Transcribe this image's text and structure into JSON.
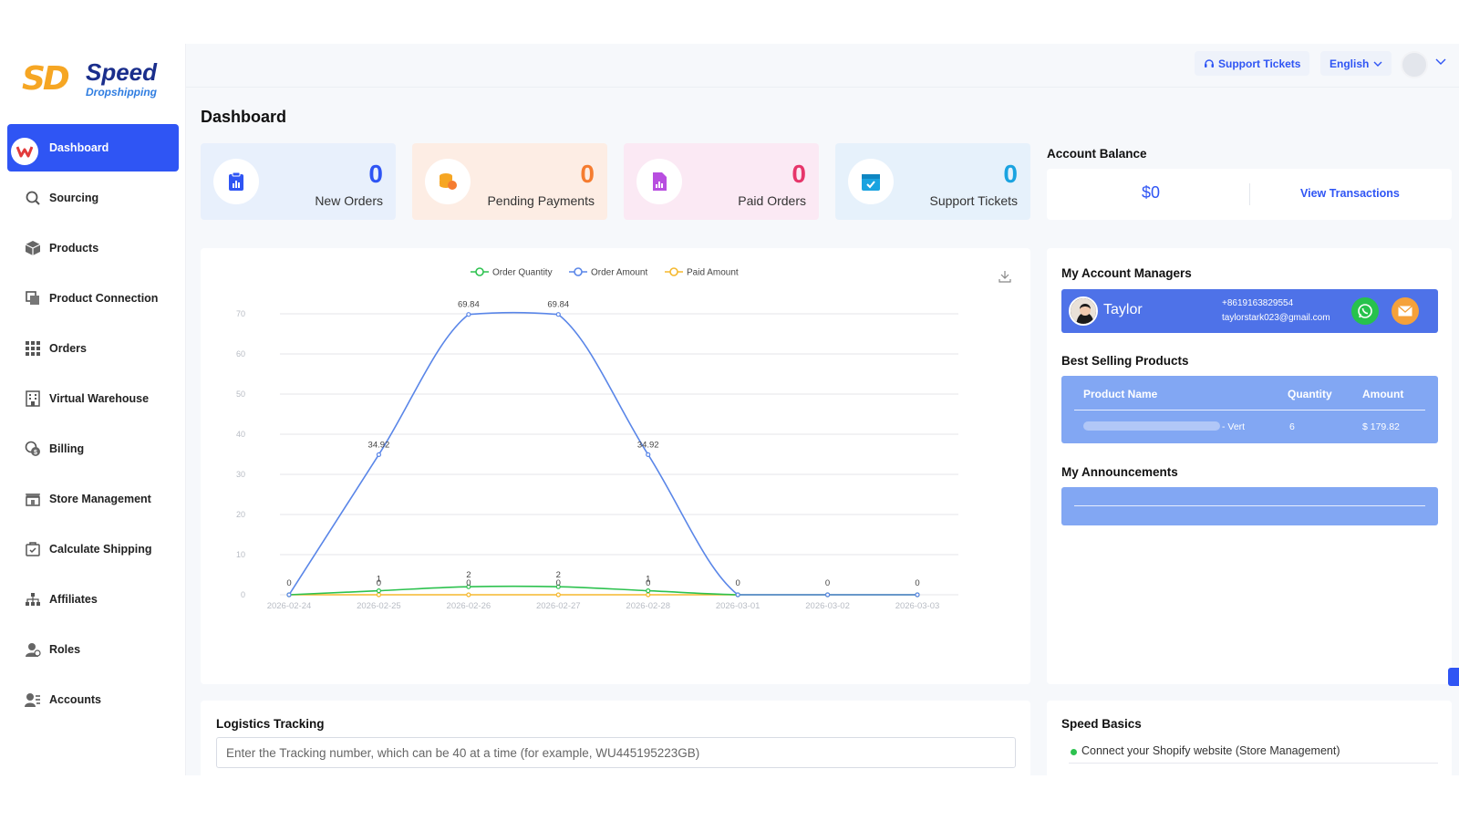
{
  "brand": {
    "mark": "SD",
    "name": "Speed",
    "sub": "Dropshipping"
  },
  "sidebar": {
    "items": [
      {
        "key": "dashboard",
        "label": "Dashboard",
        "icon": "dashboard-icon",
        "active": true
      },
      {
        "key": "sourcing",
        "label": "Sourcing",
        "icon": "search-icon"
      },
      {
        "key": "products",
        "label": "Products",
        "icon": "box-icon"
      },
      {
        "key": "product-connection",
        "label": "Product Connection",
        "icon": "link-icon"
      },
      {
        "key": "orders",
        "label": "Orders",
        "icon": "grid-icon"
      },
      {
        "key": "virtual-warehouse",
        "label": "Virtual Warehouse",
        "icon": "warehouse-icon"
      },
      {
        "key": "billing",
        "label": "Billing",
        "icon": "billing-icon"
      },
      {
        "key": "store-management",
        "label": "Store Management",
        "icon": "store-icon"
      },
      {
        "key": "calculate-shipping",
        "label": "Calculate Shipping",
        "icon": "shipping-icon"
      },
      {
        "key": "affiliates",
        "label": "Affiliates",
        "icon": "affiliates-icon"
      },
      {
        "key": "roles",
        "label": "Roles",
        "icon": "roles-icon"
      },
      {
        "key": "accounts",
        "label": "Accounts",
        "icon": "accounts-icon"
      }
    ]
  },
  "topbar": {
    "support_label": "Support Tickets",
    "language": "English"
  },
  "page": {
    "title": "Dashboard"
  },
  "stats": [
    {
      "key": "new-orders",
      "value": "0",
      "label": "New Orders",
      "bg": "#e8f0fc",
      "num_color": "#2f55f4",
      "icon": "clipboard-icon"
    },
    {
      "key": "pending-payments",
      "value": "0",
      "label": "Pending Payments",
      "bg": "#fdede4",
      "num_color": "#f57c30",
      "icon": "coins-icon"
    },
    {
      "key": "paid-orders",
      "value": "0",
      "label": "Paid Orders",
      "bg": "#fbe9f4",
      "num_color": "#e6356a",
      "icon": "report-icon"
    },
    {
      "key": "support-tickets",
      "value": "0",
      "label": "Support Tickets",
      "bg": "#e6f1fb",
      "num_color": "#1aa3e0",
      "icon": "calendar-icon"
    }
  ],
  "balance": {
    "title": "Account Balance",
    "amount": "$0",
    "link": "View Transactions"
  },
  "chart_data": {
    "type": "line",
    "x": [
      "2026-02-24",
      "2026-02-25",
      "2026-02-26",
      "2026-02-27",
      "2026-02-28",
      "2026-03-01",
      "2026-03-02",
      "2026-03-03"
    ],
    "ylim": [
      0,
      70
    ],
    "yticks": [
      0,
      10,
      20,
      30,
      40,
      50,
      60,
      70
    ],
    "grid": true,
    "legend_position": "top-center",
    "series": [
      {
        "name": "Order Quantity",
        "color": "#2dc24f",
        "values": [
          0,
          1,
          2,
          2,
          1,
          0,
          0,
          0
        ],
        "labels": [
          "",
          "1",
          "2",
          "2",
          "1",
          "",
          "",
          ""
        ]
      },
      {
        "name": "Order Amount",
        "color": "#5a86e8",
        "values": [
          0,
          34.92,
          69.84,
          69.84,
          34.92,
          0,
          0,
          0
        ],
        "labels": [
          "0",
          "34.92",
          "69.84",
          "69.84",
          "34.92",
          "0",
          "0",
          "0"
        ]
      },
      {
        "name": "Paid Amount",
        "color": "#f5b82e",
        "values": [
          0,
          0,
          0,
          0,
          0,
          0,
          0,
          0
        ],
        "labels": [
          "",
          "0",
          "0",
          "0",
          "0",
          "",
          "",
          ""
        ]
      }
    ]
  },
  "managers": {
    "title": "My Account Managers",
    "name": "Taylor",
    "phone": "+8619163829554",
    "email": "taylorstark023@gmail.com"
  },
  "best_selling": {
    "title": "Best Selling Products",
    "headers": [
      "Product Name",
      "Quantity",
      "Amount"
    ],
    "rows": [
      {
        "name_suffix": "- Vert",
        "quantity": "6",
        "amount": "$ 179.82"
      }
    ]
  },
  "announcements": {
    "title": "My Announcements"
  },
  "logistics": {
    "title": "Logistics Tracking",
    "placeholder": "Enter the Tracking number, which can be 40 at a time (for example, WU445195223GB)"
  },
  "basics": {
    "title": "Speed Basics",
    "items": [
      "Connect your Shopify website (Store Management)"
    ]
  }
}
